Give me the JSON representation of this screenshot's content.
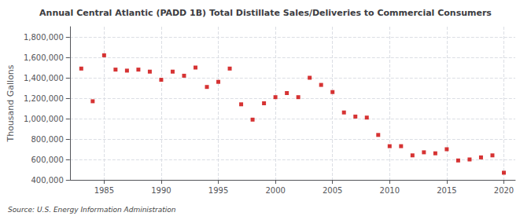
{
  "chart_data": {
    "type": "scatter",
    "title": "Annual Central Atlantic (PADD 1B) Total Distillate Sales/Deliveries to Commercial Consumers",
    "ylabel": "Thousand Gallons",
    "source": "Source: U.S. Energy Information Administration",
    "x": [
      1983,
      1984,
      1985,
      1986,
      1987,
      1988,
      1989,
      1990,
      1991,
      1992,
      1993,
      1994,
      1995,
      1996,
      1997,
      1998,
      1999,
      2000,
      2001,
      2002,
      2003,
      2004,
      2005,
      2006,
      2007,
      2008,
      2009,
      2010,
      2011,
      2012,
      2013,
      2014,
      2015,
      2016,
      2017,
      2018,
      2019,
      2020
    ],
    "values": [
      1490000,
      1170000,
      1620000,
      1480000,
      1470000,
      1480000,
      1460000,
      1380000,
      1460000,
      1420000,
      1500000,
      1310000,
      1360000,
      1490000,
      1140000,
      990000,
      1150000,
      1210000,
      1250000,
      1210000,
      1400000,
      1330000,
      1260000,
      1060000,
      1020000,
      1010000,
      840000,
      730000,
      730000,
      640000,
      670000,
      660000,
      700000,
      590000,
      600000,
      620000,
      640000,
      470000
    ],
    "color": "#cc0000",
    "marker": "square",
    "xlim": [
      1982,
      2021
    ],
    "ylim": [
      400000,
      1900000
    ],
    "xticks": [
      1985,
      1990,
      1995,
      2000,
      2005,
      2010,
      2015,
      2020
    ],
    "yticks": [
      {
        "value": 400000,
        "label": "400,000"
      },
      {
        "value": 600000,
        "label": "600,000"
      },
      {
        "value": 800000,
        "label": "800,000"
      },
      {
        "value": 1000000,
        "label": "1,000,000"
      },
      {
        "value": 1200000,
        "label": "1,200,000"
      },
      {
        "value": 1400000,
        "label": "1,400,000"
      },
      {
        "value": 1600000,
        "label": "1,600,000"
      },
      {
        "value": 1800000,
        "label": "1,800,000"
      }
    ],
    "grid": true
  }
}
